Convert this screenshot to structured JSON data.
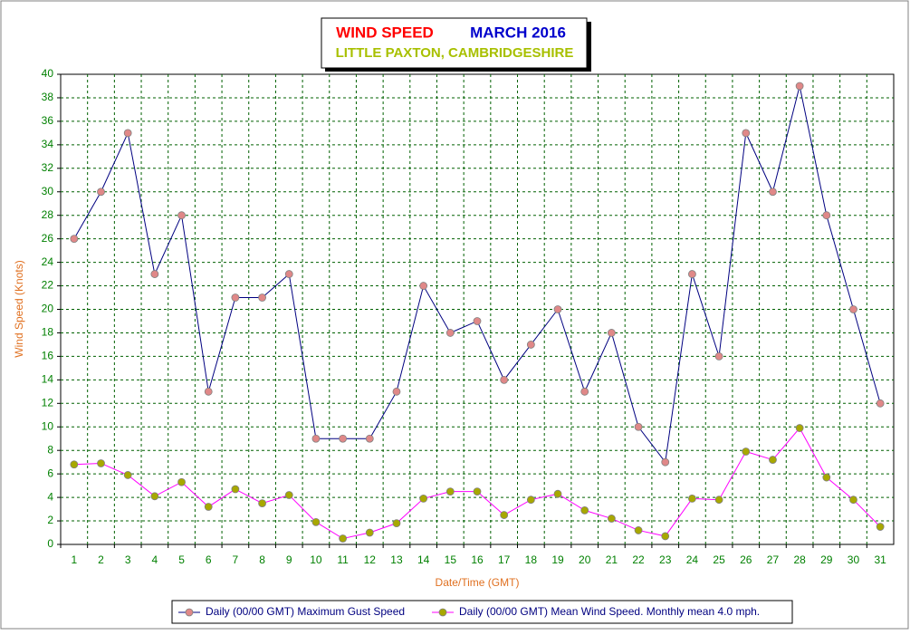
{
  "chart_data": {
    "type": "line",
    "title": [
      "WIND SPEED",
      "MARCH 2016"
    ],
    "subtitle": "LITTLE PAXTON, CAMBRIDGESHIRE",
    "x_label": "Date/Time (GMT)",
    "y_label": "Wind Speed (Knots)",
    "categories": [
      "1",
      "2",
      "3",
      "4",
      "5",
      "6",
      "7",
      "8",
      "9",
      "10",
      "11",
      "12",
      "13",
      "14",
      "15",
      "16",
      "17",
      "18",
      "19",
      "20",
      "21",
      "22",
      "23",
      "24",
      "25",
      "26",
      "27",
      "28",
      "29",
      "30",
      "31"
    ],
    "series": [
      {
        "name": "Daily (00/00 GMT) Maximum Gust Speed",
        "color": "#000080",
        "marker_color": "#e08888",
        "values": [
          26,
          30,
          35,
          23,
          28,
          13,
          21,
          21,
          23,
          9,
          9,
          9,
          13,
          22,
          18,
          19,
          14,
          17,
          20,
          13,
          18,
          10,
          7,
          23,
          16,
          35,
          30,
          39,
          28,
          20,
          12
        ]
      },
      {
        "name": "Daily (00/00 GMT) Mean Wind Speed. Monthly mean 4.0 mph.",
        "color": "#ff00ff",
        "marker_color": "#a8a800",
        "values": [
          6.8,
          6.9,
          5.9,
          4.1,
          5.3,
          3.2,
          4.7,
          3.5,
          4.2,
          1.9,
          0.5,
          1.0,
          1.8,
          3.9,
          4.5,
          4.5,
          2.5,
          3.8,
          4.3,
          2.9,
          2.2,
          1.2,
          0.7,
          3.9,
          3.8,
          7.9,
          7.2,
          9.9,
          5.7,
          3.8,
          1.5
        ]
      }
    ],
    "ylim": [
      0,
      40
    ],
    "yticks": [
      0,
      2,
      4,
      6,
      8,
      10,
      12,
      14,
      16,
      18,
      20,
      22,
      24,
      26,
      28,
      30,
      32,
      34,
      36,
      38,
      40
    ],
    "grid": true
  }
}
